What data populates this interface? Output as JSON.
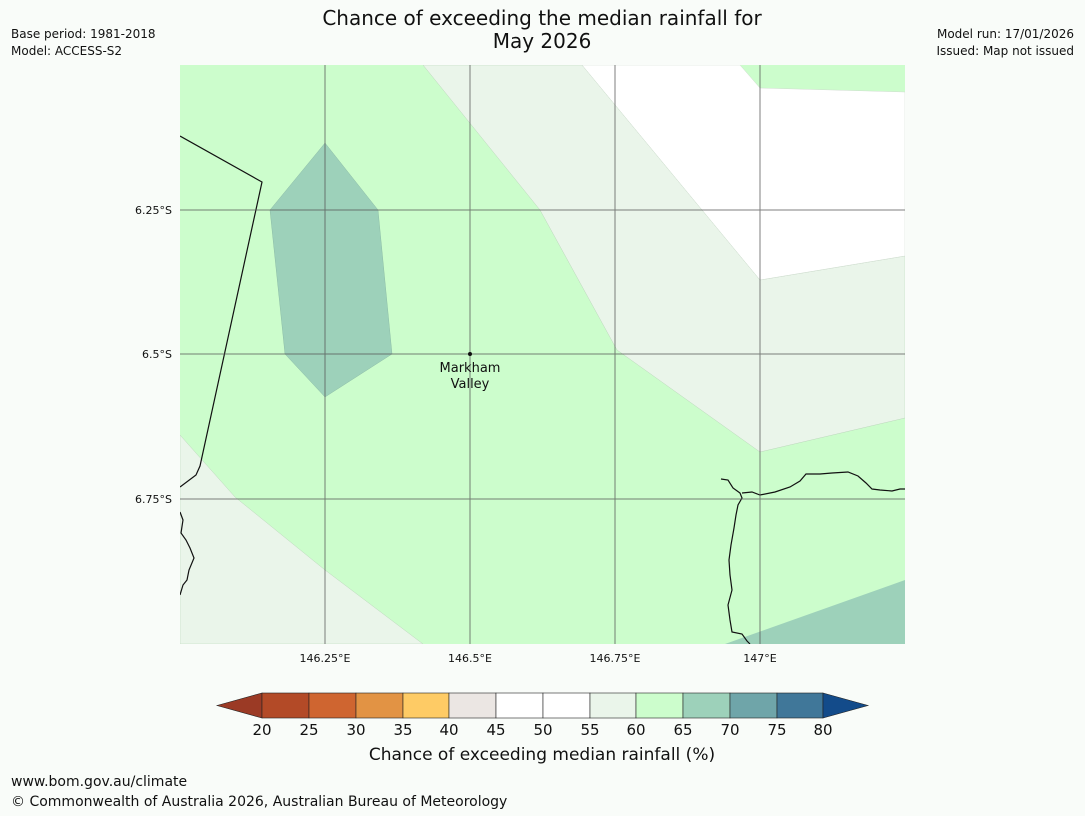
{
  "title": {
    "line1": "Chance of exceeding the median rainfall for",
    "line2": "May 2026"
  },
  "meta_left": {
    "base_period": "Base period: 1981-2018",
    "model": "Model: ACCESS-S2"
  },
  "meta_right": {
    "model_run": "Model run: 17/01/2026",
    "issued": "Issued: Map not issued"
  },
  "map": {
    "lat_labels": [
      "6.25°S",
      "6.5°S",
      "6.75°S"
    ],
    "lon_labels": [
      "146.25°E",
      "146.5°E",
      "146.75°E",
      "147°E"
    ],
    "place": {
      "name_line1": "Markham",
      "name_line2": "Valley",
      "lon": 146.5,
      "lat": -6.5
    }
  },
  "colorbar": {
    "title": "Chance of exceeding median rainfall (%)",
    "ticks": [
      "20",
      "25",
      "30",
      "35",
      "40",
      "45",
      "50",
      "55",
      "60",
      "65",
      "70",
      "75",
      "80"
    ],
    "colors": {
      "under": "#9b3a25",
      "c20_25": "#b34a27",
      "c25_30": "#cf6530",
      "c30_35": "#e29344",
      "c35_40": "#fecb65",
      "c40_45": "#ebe6e3",
      "c45_50": "#ffffff",
      "c50_55": "#ffffff",
      "c55_60": "#eaf5ea",
      "c60_65": "#ccfdcc",
      "c65_70": "#9dd1ba",
      "c70_75": "#6fa5a9",
      "c75_80": "#407799",
      "over": "#134b8a"
    }
  },
  "footer": {
    "url": "www.bom.gov.au/climate",
    "copyright": "© Commonwealth of Australia 2026, Australian Bureau of Meteorology"
  }
}
